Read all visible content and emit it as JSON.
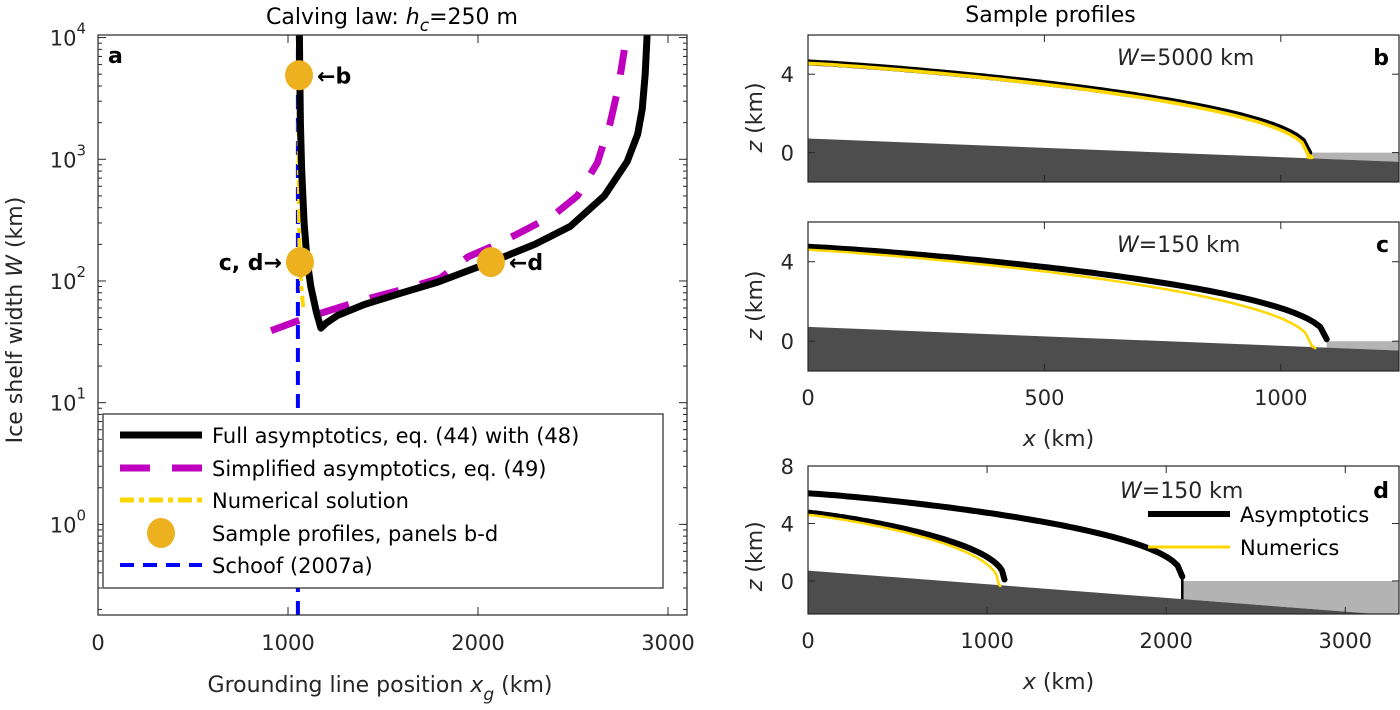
{
  "chart_data": [
    {
      "panel": "a",
      "type": "line",
      "title": "Calving law: h_c=250 m",
      "title_parts": {
        "prefix": "Calving law: ",
        "var": "h",
        "sub": "c",
        "suffix": "=250 m"
      },
      "xlabel": "Grounding line position x_g (km)",
      "xlabel_parts": {
        "prefix": "Grounding line position ",
        "var": "x",
        "sub": "g",
        "suffix": " (km)"
      },
      "ylabel": "Ice shelf width W (km)",
      "ylabel_parts": {
        "prefix": "Ice shelf width ",
        "var": "W",
        "suffix": " (km)"
      },
      "xlim": [
        0,
        3100
      ],
      "ylim": [
        0.18,
        10500
      ],
      "yscale": "log",
      "xticks": [
        0,
        1000,
        2000,
        3000
      ],
      "xtick_labels": [
        "0",
        "1000",
        "2000",
        "3000"
      ],
      "yticks": [
        1,
        10,
        100,
        1000,
        10000
      ],
      "ytick_labels": [
        {
          "base": "10",
          "exp": "0"
        },
        {
          "base": "10",
          "exp": "1"
        },
        {
          "base": "10",
          "exp": "2"
        },
        {
          "base": "10",
          "exp": "3"
        },
        {
          "base": "10",
          "exp": "4"
        }
      ],
      "panel_label": "a",
      "legend_position": "bottom-left",
      "series": [
        {
          "name": "Full asymptotics, eq. (44) with (48)",
          "color": "#000000",
          "style": "solid",
          "x": [
            1060,
            1062,
            1065,
            1072,
            1085,
            1100,
            1120,
            1150,
            1173,
            1200,
            1260,
            1400,
            1600,
            1790,
            2068,
            2300,
            2487,
            2665,
            2785,
            2840,
            2864,
            2880,
            2890
          ],
          "y": [
            10500,
            5000,
            2000,
            800,
            300,
            150,
            90,
            55,
            41,
            45,
            52,
            64,
            80,
            98,
            143,
            200,
            282,
            500,
            955,
            1600,
            2570,
            5000,
            10500
          ]
        },
        {
          "name": "Simplified asymptotics, eq. (49)",
          "color": "#BF00BF",
          "style": "dashed",
          "x": [
            911,
            1050,
            1200,
            1400,
            1600,
            1800,
            1948,
            2100,
            2225,
            2400,
            2523,
            2628,
            2696,
            2740,
            2770
          ],
          "y": [
            39,
            47,
            56,
            70,
            85,
            105,
            158,
            200,
            251,
            350,
            500,
            933,
            1995,
            4000,
            7900
          ]
        },
        {
          "name": "Numerical solution",
          "color": "#FFD700",
          "style": "dashdot",
          "x": [
            1055,
            1056,
            1057,
            1058,
            1060,
            1063,
            1070,
            1080
          ],
          "y": [
            10500,
            5000,
            1000,
            400,
            200,
            143,
            90,
            61
          ]
        },
        {
          "name": "Sample profiles, panels b-d",
          "color": "#EDB120",
          "style": "marker",
          "points": [
            {
              "x": 1058,
              "y": 4900,
              "label": "←b",
              "side": "right"
            },
            {
              "x": 1063,
              "y": 143,
              "label": "c, d→",
              "side": "left"
            },
            {
              "x": 2068,
              "y": 143,
              "label": "←d",
              "side": "right"
            }
          ]
        },
        {
          "name": "Schoof (2007a)",
          "color": "#0000FF",
          "style": "dashed",
          "x": [
            1052,
            1052
          ],
          "y": [
            0.18,
            10500
          ]
        }
      ]
    },
    {
      "panel": "b",
      "type": "area",
      "title": "Sample profiles",
      "annotation": {
        "var": "W",
        "text": "=5000 km"
      },
      "panel_label": "b",
      "ylabel": "z (km)",
      "xlim": [
        0,
        1250
      ],
      "ylim": [
        -1.5,
        6
      ],
      "xticks": [
        0,
        500,
        1000
      ],
      "xtick_labels": [],
      "yticks": [
        0,
        4
      ],
      "ytick_labels": [
        "0",
        "4"
      ],
      "bed": {
        "z0": 0.72,
        "slope_per_km": -0.00095
      },
      "profiles": [
        {
          "name": "Asymptotics",
          "color": "#000000",
          "surface_at_0": 4.6,
          "x_terminus": 1060,
          "z_terminus": 0.0
        },
        {
          "name": "Numerics",
          "color": "#FFD700",
          "surface_at_0": 4.55,
          "x_terminus": 1058,
          "z_terminus": -0.1
        }
      ]
    },
    {
      "panel": "c",
      "type": "area",
      "annotation": {
        "var": "W",
        "text": "=150 km"
      },
      "panel_label": "c",
      "xlabel": "x (km)",
      "ylabel": "z (km)",
      "xlim": [
        0,
        1250
      ],
      "ylim": [
        -1.5,
        6
      ],
      "xticks": [
        0,
        500,
        1000
      ],
      "xtick_labels": [
        "0",
        "500",
        "1000"
      ],
      "yticks": [
        0,
        4
      ],
      "ytick_labels": [
        "0",
        "4"
      ],
      "bed": {
        "z0": 0.72,
        "slope_per_km": -0.00095
      },
      "profiles": [
        {
          "name": "Asymptotics",
          "color": "#000000",
          "surface_at_0": 4.75,
          "x_terminus": 1097,
          "z_terminus": 0.1
        },
        {
          "name": "Numerics",
          "color": "#FFD700",
          "surface_at_0": 4.6,
          "x_terminus": 1065,
          "z_terminus": -0.2
        }
      ]
    },
    {
      "panel": "d",
      "type": "area",
      "annotation": {
        "var": "W",
        "text": "=150 km"
      },
      "panel_label": "d",
      "xlabel": "x (km)",
      "ylabel": "z (km)",
      "xlim": [
        0,
        3300
      ],
      "ylim": [
        -2.3,
        8
      ],
      "xticks": [
        0,
        1000,
        2000,
        3000
      ],
      "xtick_labels": [
        "0",
        "1000",
        "2000",
        "3000"
      ],
      "yticks": [
        0,
        4,
        8
      ],
      "ytick_labels": [
        "0",
        "4",
        "8"
      ],
      "bed": {
        "z0": 0.72,
        "slope_per_km": -0.00095
      },
      "legend": [
        {
          "name": "Asymptotics",
          "color": "#000000"
        },
        {
          "name": "Numerics",
          "color": "#FFD700"
        }
      ],
      "legend_position": "top-right",
      "profiles": [
        {
          "name": "Asymptotics",
          "color": "#000000",
          "surface_at_0": 4.75,
          "x_terminus": 1097,
          "z_terminus": 0.1
        },
        {
          "name": "Numerics",
          "color": "#FFD700",
          "surface_at_0": 4.6,
          "x_terminus": 1065,
          "z_terminus": -0.2
        },
        {
          "name": "Asymptotics",
          "color": "#000000",
          "surface_at_0": 6.1,
          "x_terminus": 2090,
          "z_terminus": 0.3,
          "cliff": true
        }
      ]
    }
  ],
  "colors": {
    "bed": "#4D4D4D",
    "ocean": "#B3B3B3",
    "axis": "#262626"
  }
}
